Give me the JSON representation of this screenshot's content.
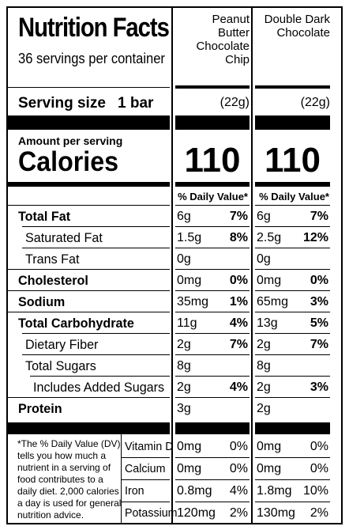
{
  "title": "Nutrition Facts",
  "servings_per_container": "36 servings per container",
  "serving_size_label": "Serving size",
  "serving_size_value": "1 bar",
  "products": [
    {
      "name_lines": [
        "Peanut",
        "Butter",
        "Chocolate",
        "Chip"
      ],
      "serving_grams": "(22g)",
      "calories": "110"
    },
    {
      "name_lines": [
        "Double Dark",
        "Chocolate"
      ],
      "serving_grams": "(22g)",
      "calories": "110"
    }
  ],
  "amount_per_serving": "Amount per serving",
  "calories_label": "Calories",
  "daily_value_header": "% Daily Value*",
  "nutrients": [
    {
      "label": "Total Fat",
      "bold": true,
      "values": [
        {
          "amount": "6g",
          "dv": "7%"
        },
        {
          "amount": "6g",
          "dv": "7%"
        }
      ]
    },
    {
      "label": "Saturated Fat",
      "bold": false,
      "values": [
        {
          "amount": "1.5g",
          "dv": "8%"
        },
        {
          "amount": "2.5g",
          "dv": "12%"
        }
      ]
    },
    {
      "label": "Trans Fat",
      "bold": false,
      "values": [
        {
          "amount": "0g",
          "dv": ""
        },
        {
          "amount": "0g",
          "dv": ""
        }
      ]
    },
    {
      "label": "Cholesterol",
      "bold": true,
      "values": [
        {
          "amount": "0mg",
          "dv": "0%"
        },
        {
          "amount": "0mg",
          "dv": "0%"
        }
      ]
    },
    {
      "label": "Sodium",
      "bold": true,
      "values": [
        {
          "amount": "35mg",
          "dv": "1%"
        },
        {
          "amount": "65mg",
          "dv": "3%"
        }
      ]
    },
    {
      "label": "Total Carbohydrate",
      "bold": true,
      "values": [
        {
          "amount": "11g",
          "dv": "4%"
        },
        {
          "amount": "13g",
          "dv": "5%"
        }
      ]
    },
    {
      "label": "Dietary Fiber",
      "bold": false,
      "values": [
        {
          "amount": "2g",
          "dv": "7%"
        },
        {
          "amount": "2g",
          "dv": "7%"
        }
      ]
    },
    {
      "label": "Total Sugars",
      "bold": false,
      "values": [
        {
          "amount": "8g",
          "dv": ""
        },
        {
          "amount": "8g",
          "dv": ""
        }
      ]
    },
    {
      "label": "Includes Added Sugars",
      "bold": false,
      "values": [
        {
          "amount": "2g",
          "dv": "4%"
        },
        {
          "amount": "2g",
          "dv": "3%"
        }
      ]
    },
    {
      "label": "Protein",
      "bold": true,
      "values": [
        {
          "amount": "3g",
          "dv": ""
        },
        {
          "amount": "2g",
          "dv": ""
        }
      ]
    }
  ],
  "vitamins": [
    {
      "label": "Vitamin D",
      "values": [
        {
          "amount": "0mg",
          "dv": "0%"
        },
        {
          "amount": "0mg",
          "dv": "0%"
        }
      ]
    },
    {
      "label": "Calcium",
      "values": [
        {
          "amount": "0mg",
          "dv": "0%"
        },
        {
          "amount": "0mg",
          "dv": "0%"
        }
      ]
    },
    {
      "label": "Iron",
      "values": [
        {
          "amount": "0.8mg",
          "dv": "4%"
        },
        {
          "amount": "1.8mg",
          "dv": "10%"
        }
      ]
    },
    {
      "label": "Potassium",
      "values": [
        {
          "amount": "120mg",
          "dv": "2%"
        },
        {
          "amount": "130mg",
          "dv": "2%"
        }
      ]
    }
  ],
  "footnote_lines": [
    "*The % Daily Value (DV)",
    "tells you how much a",
    "nutrient in a serving of",
    "food contributes to a",
    "daily diet. 2,000 calories",
    "a day is used for general",
    "nutrition advice."
  ]
}
